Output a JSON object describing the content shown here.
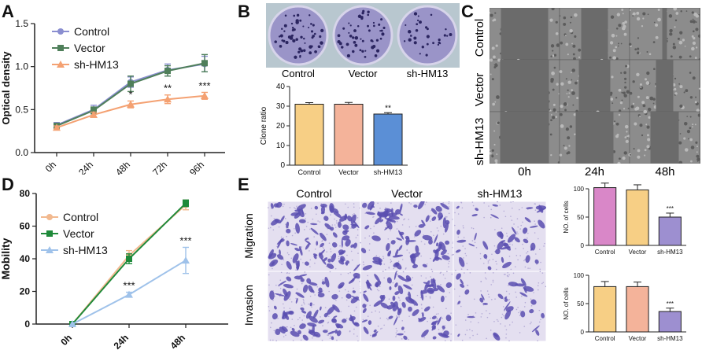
{
  "panels": {
    "A": "A",
    "B": "B",
    "C": "C",
    "D": "D",
    "E": "E"
  },
  "colors": {
    "control_A": "#8a8ed0",
    "vector_A": "#4f7f5a",
    "hm13_A": "#f4a172",
    "control_D": "#f2b98f",
    "vector_D": "#1f8a3a",
    "hm13_D": "#9fc2ea",
    "bar_control_B": "#f7cf85",
    "bar_vector_B": "#f4b39a",
    "bar_hm13_B": "#5b8fd6",
    "bar_control_E": "#d987c8",
    "bar_vector_E": "#f7cf85",
    "bar_hm13_E": "#9d8fd0",
    "bar_control_E2": "#f7cf85",
    "bar_vector_E2": "#f4b39a",
    "bar_hm13_E2": "#9d8fd0",
    "stain": "#5a4fb0",
    "dish": "#9a94c8",
    "wound": "#6b6b6b"
  },
  "chart_data": [
    {
      "id": "A",
      "type": "line",
      "ylabel": "Optical density",
      "categories": [
        "0h",
        "24h",
        "48h",
        "72h",
        "96h"
      ],
      "ylim": [
        0,
        1.5
      ],
      "yticks": [
        "0.0",
        "0.5",
        "1.0",
        "1.5"
      ],
      "series": [
        {
          "name": "Control",
          "values": [
            0.32,
            0.5,
            0.82,
            0.96,
            1.03
          ],
          "err": [
            0.03,
            0.05,
            0.06,
            0.07,
            0.09
          ]
        },
        {
          "name": "Vector",
          "values": [
            0.31,
            0.49,
            0.8,
            0.95,
            1.04
          ],
          "err": [
            0.03,
            0.04,
            0.09,
            0.06,
            0.1
          ]
        },
        {
          "name": "sh-HM13",
          "values": [
            0.29,
            0.44,
            0.56,
            0.62,
            0.66
          ],
          "err": [
            0.02,
            0.03,
            0.04,
            0.05,
            0.04
          ]
        }
      ],
      "annotations": [
        {
          "x": "48h",
          "text": "*"
        },
        {
          "x": "72h",
          "text": "**"
        },
        {
          "x": "96h",
          "text": "***"
        }
      ]
    },
    {
      "id": "B",
      "type": "bar",
      "ylabel": "Clone ratio",
      "categories": [
        "Control",
        "Vector",
        "sh-HM13"
      ],
      "values": [
        31,
        31,
        26
      ],
      "err": [
        0.8,
        0.9,
        0.7
      ],
      "ylim": [
        0,
        40
      ],
      "yticks": [
        "0",
        "10",
        "20",
        "30",
        "40"
      ],
      "annotations": [
        {
          "x": "sh-HM13",
          "text": "**"
        }
      ]
    },
    {
      "id": "D",
      "type": "line",
      "ylabel": "Mobility",
      "categories": [
        "0h",
        "24h",
        "48h"
      ],
      "ylim": [
        0,
        80
      ],
      "yticks": [
        "0",
        "20",
        "40",
        "60",
        "80"
      ],
      "series": [
        {
          "name": "Control",
          "values": [
            0,
            42,
            73
          ],
          "err": [
            0,
            3,
            3
          ]
        },
        {
          "name": "Vector",
          "values": [
            0,
            40,
            74
          ],
          "err": [
            0,
            3,
            2
          ]
        },
        {
          "name": "sh-HM13",
          "values": [
            0,
            18,
            39
          ],
          "err": [
            0,
            1.5,
            8
          ]
        }
      ],
      "annotations": [
        {
          "x": "24h",
          "text": "***"
        },
        {
          "x": "48h",
          "text": "***"
        }
      ]
    },
    {
      "id": "E1",
      "type": "bar",
      "ylabel": "NO. of cells",
      "categories": [
        "Control",
        "Vector",
        "sh-HM13"
      ],
      "values": [
        102,
        98,
        50
      ],
      "err": [
        8,
        9,
        7
      ],
      "ylim": [
        0,
        100
      ],
      "yticks": [
        "0",
        "50",
        "100"
      ],
      "annotations": [
        {
          "x": "sh-HM13",
          "text": "***"
        }
      ]
    },
    {
      "id": "E2",
      "type": "bar",
      "ylabel": "NO. of cells",
      "categories": [
        "Control",
        "Vector",
        "sh-HM13"
      ],
      "values": [
        80,
        80,
        36
      ],
      "err": [
        9,
        8,
        6
      ],
      "ylim": [
        0,
        100
      ],
      "yticks": [
        "0",
        "50",
        "100"
      ],
      "annotations": [
        {
          "x": "sh-HM13",
          "text": "***"
        }
      ]
    }
  ],
  "panelB": {
    "dish_labels": [
      "Control",
      "Vector",
      "sh-HM13"
    ]
  },
  "panelC": {
    "row_labels": [
      "Control",
      "Vector",
      "sh-HM13"
    ],
    "time_labels": [
      "0h",
      "24h",
      "48h"
    ]
  },
  "panelE": {
    "col_labels": [
      "Control",
      "Vector",
      "sh-HM13"
    ],
    "row_labels": [
      "Migration",
      "Invasion"
    ]
  }
}
